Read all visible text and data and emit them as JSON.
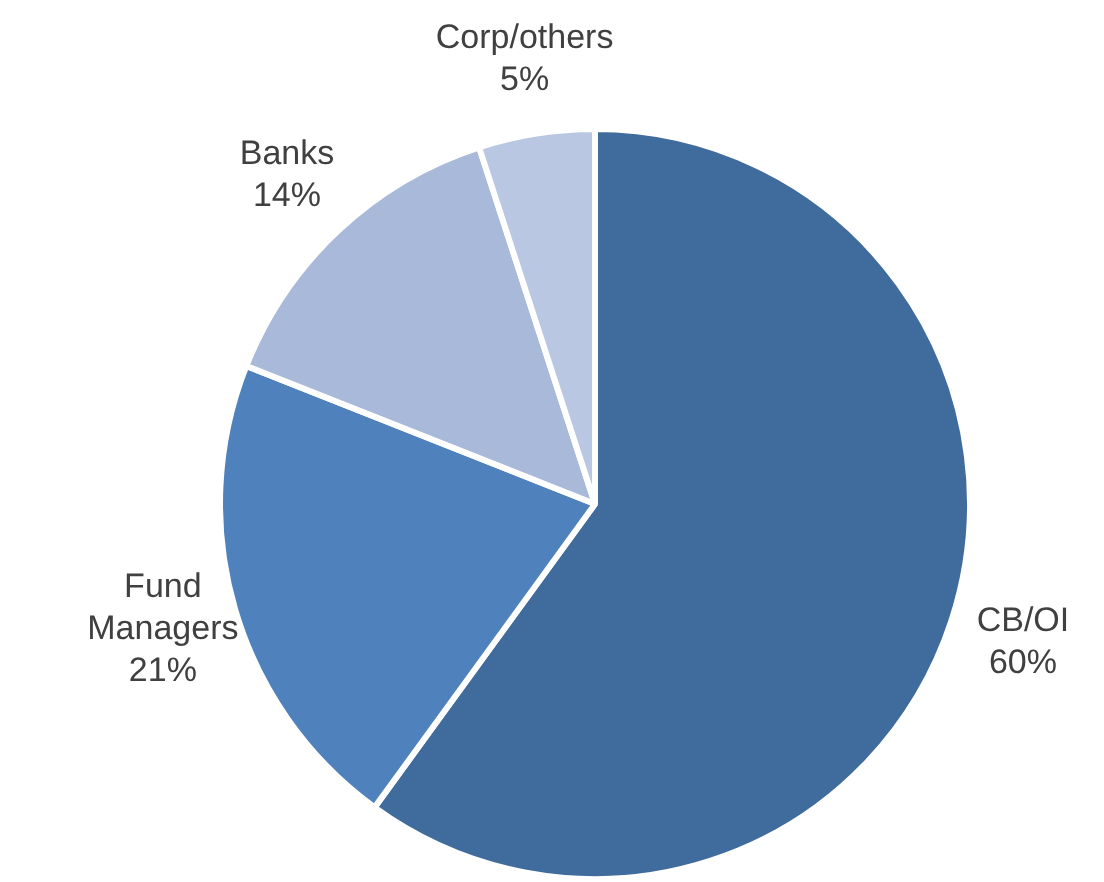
{
  "chart_data": {
    "type": "pie",
    "categories": [
      "CB/OI",
      "Fund Managers",
      "Banks",
      "Corp/others"
    ],
    "values": [
      60,
      21,
      14,
      5
    ],
    "colors": [
      "#406b9d",
      "#4f81bd",
      "#a9b9d9",
      "#b9c7e2"
    ],
    "value_labels": [
      "60%",
      "21%",
      "14%",
      "5%"
    ],
    "legend": false
  }
}
